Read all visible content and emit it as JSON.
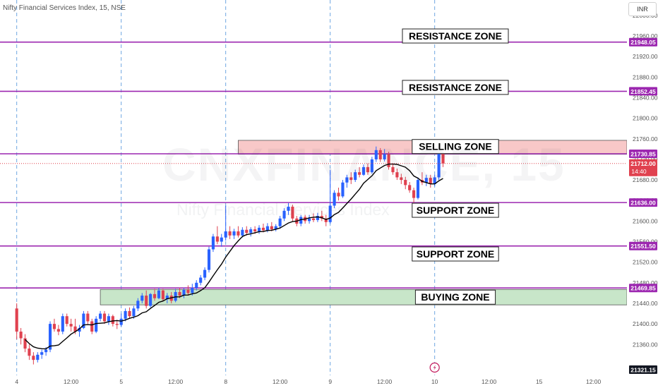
{
  "header": {
    "ticker": "Nifty Financial Services Index, 15, NSE",
    "currency": "INR"
  },
  "watermark": {
    "main": "CNXFINANCE, 15",
    "sub": "Nifty Financial Services Index"
  },
  "colors": {
    "up": "#2962ff",
    "down": "#e0414f",
    "level": "#9c27b0",
    "sell_zone": "#f8c8c8",
    "buy_zone": "#c8e6c9",
    "ma": "#000000"
  },
  "chart_data": {
    "type": "candlestick",
    "y_range": [
      21300,
      22030
    ],
    "y_ticks": [
      22000,
      21960,
      21920,
      21880,
      21840,
      21800,
      21760,
      21720,
      21680,
      21640,
      21600,
      21560,
      21520,
      21480,
      21440,
      21400,
      21360
    ],
    "x_ticks": [
      {
        "label": "4",
        "bar": 0
      },
      {
        "label": "12:00",
        "bar": 13
      },
      {
        "label": "5",
        "bar": 25
      },
      {
        "label": "12:00",
        "bar": 38
      },
      {
        "label": "8",
        "bar": 50
      },
      {
        "label": "12:00",
        "bar": 63
      },
      {
        "label": "9",
        "bar": 75
      },
      {
        "label": "12:00",
        "bar": 88
      },
      {
        "label": "10",
        "bar": 100
      },
      {
        "label": "12:00",
        "bar": 113
      },
      {
        "label": "15",
        "bar": 125
      },
      {
        "label": "12:00",
        "bar": 138
      }
    ],
    "x_bar_range": [
      -4,
      146
    ],
    "session_starts": [
      0,
      25,
      50,
      75,
      100
    ],
    "levels": [
      {
        "price": 21948.05,
        "label": "21948.05"
      },
      {
        "price": 21852.45,
        "label": "21852.45"
      },
      {
        "price": 21730.85,
        "label": "21730.85"
      },
      {
        "price": 21636.0,
        "label": "21636.00"
      },
      {
        "price": 21551.5,
        "label": "21551.50"
      },
      {
        "price": 21469.85,
        "label": "21469.85"
      }
    ],
    "low_marker": {
      "price": 21321.15,
      "label": "21321.15"
    },
    "current_price": {
      "price": 21712.0,
      "label": "21712.00",
      "countdown": "14:40"
    },
    "zones": [
      {
        "label": "RESISTANCE ZONE",
        "type": "label",
        "price": 21960
      },
      {
        "label": "RESISTANCE ZONE",
        "type": "label",
        "price": 21860
      },
      {
        "label": "SELLING ZONE",
        "type": "box",
        "top": 21757,
        "bottom": 21730,
        "from_bar": 53,
        "price": 21745
      },
      {
        "label": "SUPPORT ZONE",
        "type": "label",
        "price": 21621
      },
      {
        "label": "SUPPORT ZONE",
        "type": "label",
        "price": 21536
      },
      {
        "label": "BUYING ZONE",
        "type": "box",
        "top": 21467,
        "bottom": 21437,
        "from_bar": 20,
        "price": 21452
      }
    ],
    "candles": [
      [
        21430,
        21440,
        21370,
        21385
      ],
      [
        21385,
        21392,
        21360,
        21372
      ],
      [
        21372,
        21380,
        21345,
        21352
      ],
      [
        21352,
        21360,
        21330,
        21338
      ],
      [
        21338,
        21345,
        21321.15,
        21330
      ],
      [
        21330,
        21345,
        21325,
        21340
      ],
      [
        21340,
        21350,
        21332,
        21345
      ],
      [
        21345,
        21355,
        21338,
        21350
      ],
      [
        21350,
        21405,
        21345,
        21400
      ],
      [
        21400,
        21410,
        21385,
        21390
      ],
      [
        21390,
        21398,
        21378,
        21385
      ],
      [
        21385,
        21420,
        21380,
        21415
      ],
      [
        21415,
        21420,
        21395,
        21400
      ],
      [
        21400,
        21410,
        21385,
        21395
      ],
      [
        21395,
        21410,
        21380,
        21385
      ],
      [
        21385,
        21398,
        21375,
        21392
      ],
      [
        21392,
        21425,
        21390,
        21420
      ],
      [
        21420,
        21425,
        21400,
        21405
      ],
      [
        21405,
        21410,
        21380,
        21385
      ],
      [
        21385,
        21415,
        21382,
        21410
      ],
      [
        21410,
        21425,
        21405,
        21420
      ],
      [
        21420,
        21425,
        21400,
        21405
      ],
      [
        21405,
        21420,
        21398,
        21415
      ],
      [
        21415,
        21418,
        21395,
        21400
      ],
      [
        21400,
        21408,
        21390,
        21398
      ],
      [
        21398,
        21420,
        21395,
        21410
      ],
      [
        21410,
        21430,
        21405,
        21425
      ],
      [
        21425,
        21432,
        21410,
        21415
      ],
      [
        21415,
        21435,
        21410,
        21430
      ],
      [
        21430,
        21450,
        21425,
        21445
      ],
      [
        21445,
        21460,
        21440,
        21455
      ],
      [
        21455,
        21465,
        21430,
        21435
      ],
      [
        21435,
        21460,
        21432,
        21458
      ],
      [
        21458,
        21468,
        21445,
        21450
      ],
      [
        21450,
        21470,
        21448,
        21465
      ],
      [
        21465,
        21468,
        21445,
        21448
      ],
      [
        21448,
        21460,
        21440,
        21455
      ],
      [
        21455,
        21462,
        21440,
        21445
      ],
      [
        21445,
        21468,
        21442,
        21462
      ],
      [
        21462,
        21470,
        21450,
        21455
      ],
      [
        21455,
        21470,
        21450,
        21466
      ],
      [
        21466,
        21475,
        21455,
        21460
      ],
      [
        21460,
        21478,
        21455,
        21470
      ],
      [
        21470,
        21485,
        21465,
        21480
      ],
      [
        21480,
        21495,
        21475,
        21490
      ],
      [
        21490,
        21510,
        21485,
        21505
      ],
      [
        21505,
        21550,
        21500,
        21545
      ],
      [
        21545,
        21575,
        21540,
        21570
      ],
      [
        21570,
        21590,
        21555,
        21560
      ],
      [
        21560,
        21575,
        21550,
        21568
      ],
      [
        21568,
        21630,
        21562,
        21580
      ],
      [
        21580,
        21590,
        21565,
        21572
      ],
      [
        21572,
        21585,
        21565,
        21580
      ],
      [
        21580,
        21590,
        21568,
        21572
      ],
      [
        21572,
        21588,
        21568,
        21583
      ],
      [
        21583,
        21590,
        21572,
        21577
      ],
      [
        21577,
        21588,
        21570,
        21584
      ],
      [
        21584,
        21590,
        21575,
        21580
      ],
      [
        21580,
        21592,
        21575,
        21587
      ],
      [
        21587,
        21595,
        21578,
        21582
      ],
      [
        21582,
        21596,
        21578,
        21590
      ],
      [
        21590,
        21598,
        21580,
        21584
      ],
      [
        21584,
        21594,
        21580,
        21590
      ],
      [
        21590,
        21610,
        21585,
        21605
      ],
      [
        21605,
        21625,
        21600,
        21620
      ],
      [
        21620,
        21635,
        21612,
        21628
      ],
      [
        21628,
        21632,
        21600,
        21605
      ],
      [
        21605,
        21610,
        21590,
        21595
      ],
      [
        21595,
        21612,
        21590,
        21608
      ],
      [
        21608,
        21612,
        21595,
        21600
      ],
      [
        21600,
        21612,
        21595,
        21605
      ],
      [
        21605,
        21615,
        21598,
        21602
      ],
      [
        21602,
        21616,
        21598,
        21610
      ],
      [
        21610,
        21620,
        21600,
        21605
      ],
      [
        21605,
        21612,
        21590,
        21598
      ],
      [
        21598,
        21700,
        21595,
        21630
      ],
      [
        21630,
        21660,
        21625,
        21655
      ],
      [
        21655,
        21665,
        21640,
        21648
      ],
      [
        21648,
        21680,
        21645,
        21675
      ],
      [
        21675,
        21690,
        21665,
        21685
      ],
      [
        21685,
        21695,
        21672,
        21680
      ],
      [
        21680,
        21700,
        21676,
        21695
      ],
      [
        21695,
        21705,
        21685,
        21690
      ],
      [
        21690,
        21710,
        21688,
        21705
      ],
      [
        21705,
        21712,
        21690,
        21695
      ],
      [
        21695,
        21725,
        21692,
        21720
      ],
      [
        21720,
        21745,
        21715,
        21738
      ],
      [
        21738,
        21742,
        21715,
        21720
      ],
      [
        21720,
        21740,
        21716,
        21730
      ],
      [
        21730,
        21735,
        21700,
        21705
      ],
      [
        21705,
        21712,
        21690,
        21695
      ],
      [
        21695,
        21702,
        21680,
        21685
      ],
      [
        21685,
        21692,
        21672,
        21680
      ],
      [
        21680,
        21686,
        21662,
        21670
      ],
      [
        21670,
        21676,
        21655,
        21660
      ],
      [
        21660,
        21665,
        21636,
        21645
      ],
      [
        21645,
        21685,
        21642,
        21680
      ],
      [
        21680,
        21695,
        21670,
        21675
      ],
      [
        21675,
        21690,
        21668,
        21684
      ],
      [
        21684,
        21690,
        21665,
        21672
      ],
      [
        21672,
        21690,
        21668,
        21685
      ],
      [
        21685,
        21740,
        21680,
        21732
      ],
      [
        21732,
        21735,
        21705,
        21712
      ]
    ]
  }
}
